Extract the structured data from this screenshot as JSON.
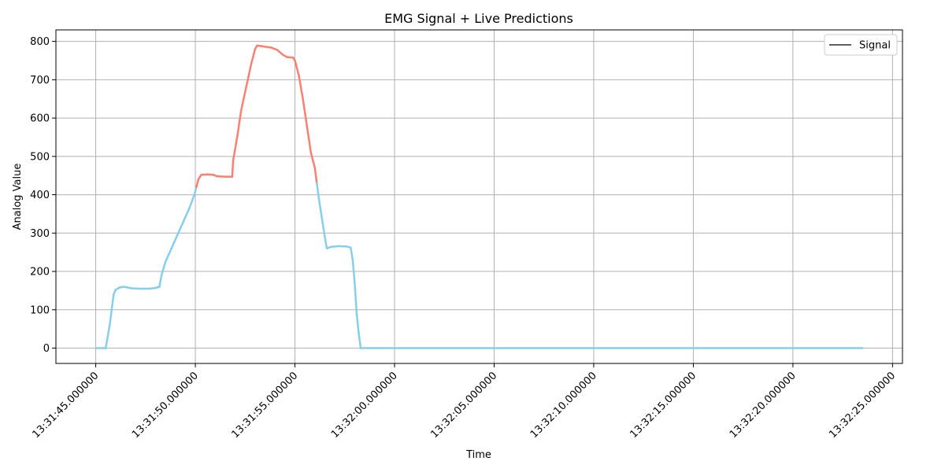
{
  "chart_data": {
    "type": "line",
    "title": "EMG Signal + Live Predictions",
    "xlabel": "Time",
    "ylabel": "Analog Value",
    "grid": true,
    "legend": {
      "placement": "top-right",
      "entries": [
        "Signal"
      ]
    },
    "xlim": [
      "13:31:43.000000",
      "13:32:25.500000"
    ],
    "ylim": [
      -40,
      830
    ],
    "x_ticks": [
      "13:31:45.000000",
      "13:31:50.000000",
      "13:31:55.000000",
      "13:32:00.000000",
      "13:32:05.000000",
      "13:32:10.000000",
      "13:32:15.000000",
      "13:32:20.000000",
      "13:32:25.000000"
    ],
    "y_ticks": [
      0,
      100,
      200,
      300,
      400,
      500,
      600,
      700,
      800
    ],
    "colors": {
      "low": "#87CEEB",
      "high": "#FA8072",
      "legend_line": "#000000",
      "grid": "#b0b0b0"
    },
    "series": [
      {
        "name": "Signal",
        "points": [
          [
            "13:31:45.000000",
            0
          ],
          [
            "13:31:45.500000",
            0
          ],
          [
            "13:31:45.600000",
            30
          ],
          [
            "13:31:45.700000",
            60
          ],
          [
            "13:31:45.800000",
            100
          ],
          [
            "13:31:45.900000",
            140
          ],
          [
            "13:31:46.000000",
            152
          ],
          [
            "13:31:46.200000",
            158
          ],
          [
            "13:31:46.400000",
            160
          ],
          [
            "13:31:46.800000",
            156
          ],
          [
            "13:31:47.200000",
            155
          ],
          [
            "13:31:47.700000",
            155
          ],
          [
            "13:31:48.000000",
            157
          ],
          [
            "13:31:48.200000",
            160
          ],
          [
            "13:31:48.300000",
            190
          ],
          [
            "13:31:48.500000",
            225
          ],
          [
            "13:31:48.800000",
            260
          ],
          [
            "13:31:49.100000",
            295
          ],
          [
            "13:31:49.400000",
            330
          ],
          [
            "13:31:49.700000",
            365
          ],
          [
            "13:31:49.950000",
            400
          ],
          [
            "13:31:50.050000",
            420
          ],
          [
            "13:31:50.150000",
            440
          ],
          [
            "13:31:50.300000",
            452
          ],
          [
            "13:31:50.600000",
            453
          ],
          [
            "13:31:50.900000",
            452
          ],
          [
            "13:31:51.100000",
            448
          ],
          [
            "13:31:51.500000",
            447
          ],
          [
            "13:31:51.850000",
            447
          ],
          [
            "13:31:51.900000",
            490
          ],
          [
            "13:31:52.100000",
            550
          ],
          [
            "13:31:52.300000",
            620
          ],
          [
            "13:31:52.550000",
            680
          ],
          [
            "13:31:52.800000",
            740
          ],
          [
            "13:31:53.000000",
            780
          ],
          [
            "13:31:53.100000",
            789
          ],
          [
            "13:31:53.300000",
            788
          ],
          [
            "13:31:53.500000",
            786
          ],
          [
            "13:31:53.800000",
            784
          ],
          [
            "13:31:54.100000",
            778
          ],
          [
            "13:31:54.400000",
            765
          ],
          [
            "13:31:54.600000",
            759
          ],
          [
            "13:31:54.900000",
            758
          ],
          [
            "13:31:55.000000",
            750
          ],
          [
            "13:31:55.200000",
            710
          ],
          [
            "13:31:55.400000",
            650
          ],
          [
            "13:31:55.600000",
            580
          ],
          [
            "13:31:55.800000",
            510
          ],
          [
            "13:31:56.000000",
            470
          ],
          [
            "13:31:56.100000",
            430
          ],
          [
            "13:31:56.200000",
            390
          ],
          [
            "13:31:56.350000",
            340
          ],
          [
            "13:31:56.500000",
            290
          ],
          [
            "13:31:56.600000",
            260
          ],
          [
            "13:31:56.800000",
            264
          ],
          [
            "13:31:57.200000",
            266
          ],
          [
            "13:31:57.600000",
            265
          ],
          [
            "13:31:57.800000",
            262
          ],
          [
            "13:31:57.900000",
            230
          ],
          [
            "13:31:58.000000",
            170
          ],
          [
            "13:31:58.100000",
            90
          ],
          [
            "13:31:58.200000",
            40
          ],
          [
            "13:31:58.300000",
            0
          ],
          [
            "13:32:23.500000",
            0
          ]
        ],
        "high_threshold": 415
      }
    ]
  }
}
